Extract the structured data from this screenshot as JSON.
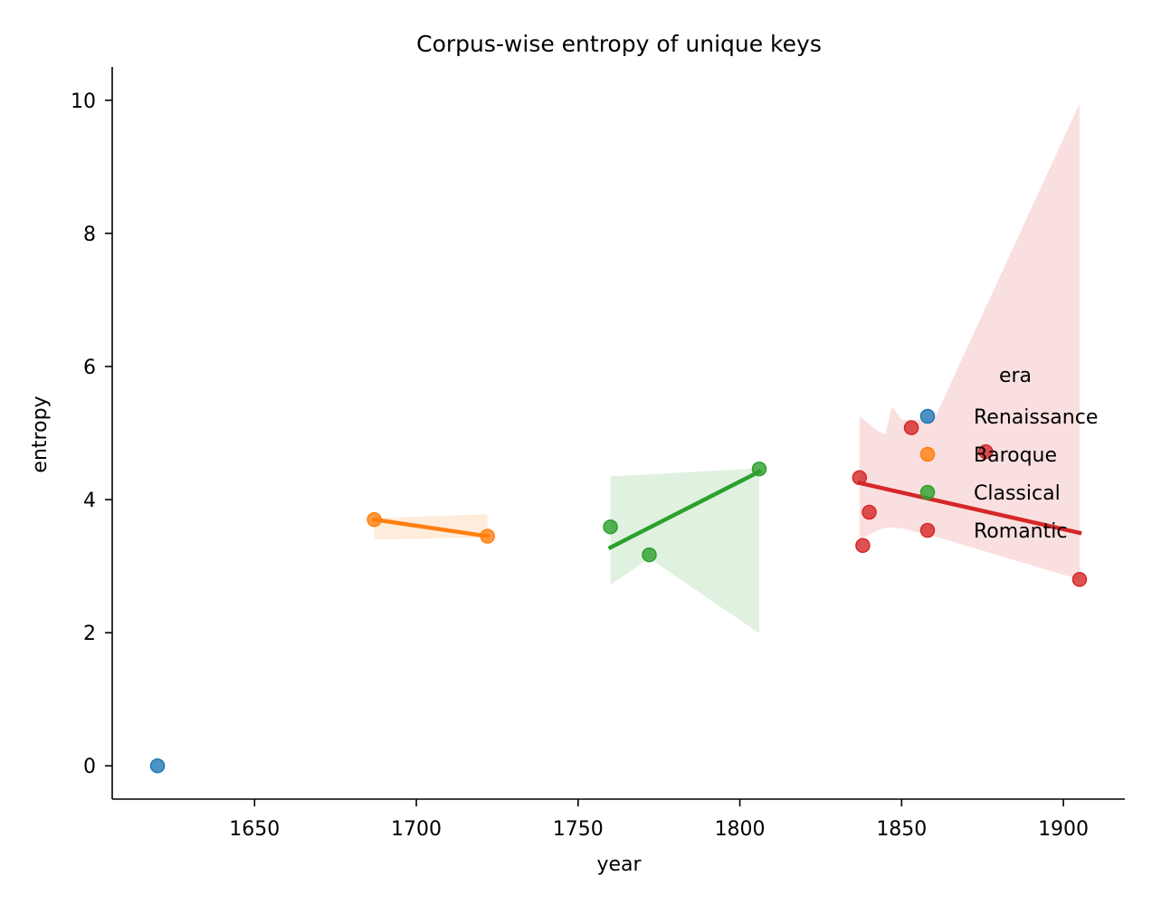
{
  "chart_data": {
    "type": "scatter",
    "title": "Corpus-wise entropy of unique keys",
    "xlabel": "year",
    "ylabel": "entropy",
    "xlim": [
      1606,
      1919
    ],
    "ylim": [
      -0.5,
      10.5
    ],
    "xticks": [
      1650,
      1700,
      1750,
      1800,
      1850,
      1900
    ],
    "yticks": [
      0,
      2,
      4,
      6,
      8,
      10
    ],
    "grid": false,
    "legend": {
      "title": "era",
      "placement": "right"
    },
    "series": [
      {
        "name": "Renaissance",
        "color": "#1f77b4",
        "points": [
          [
            1620,
            0.0
          ]
        ],
        "fit": null,
        "band": null
      },
      {
        "name": "Baroque",
        "color": "#ff7f0e",
        "points": [
          [
            1687,
            3.7
          ],
          [
            1722,
            3.45
          ]
        ],
        "fit": [
          [
            1687,
            3.7
          ],
          [
            1722,
            3.45
          ]
        ],
        "band": {
          "x": [
            1687,
            1722
          ],
          "upper": [
            3.72,
            3.78
          ],
          "lower": [
            3.4,
            3.43
          ]
        }
      },
      {
        "name": "Classical",
        "color": "#2ca02c",
        "points": [
          [
            1760,
            3.59
          ],
          [
            1772,
            3.17
          ],
          [
            1806,
            4.46
          ]
        ],
        "fit": [
          [
            1760,
            3.28
          ],
          [
            1806,
            4.42
          ]
        ],
        "band": {
          "x": [
            1760,
            1772,
            1806
          ],
          "upper": [
            4.35,
            4.38,
            4.47
          ],
          "lower": [
            2.72,
            3.12,
            1.99
          ]
        }
      },
      {
        "name": "Romantic",
        "color": "#d62728",
        "points": [
          [
            1837,
            4.33
          ],
          [
            1838,
            3.31
          ],
          [
            1840,
            3.81
          ],
          [
            1853,
            5.08
          ],
          [
            1876,
            4.72
          ],
          [
            1905,
            2.8
          ]
        ],
        "fit": [
          [
            1837,
            4.25
          ],
          [
            1905,
            3.5
          ]
        ],
        "band": {
          "x": [
            1837,
            1843,
            1845,
            1847,
            1850,
            1860,
            1905
          ],
          "upper": [
            5.25,
            5.02,
            4.98,
            5.4,
            5.2,
            5.2,
            9.95
          ],
          "lower": [
            3.4,
            3.55,
            3.58,
            3.58,
            3.57,
            3.45,
            2.8
          ]
        }
      }
    ]
  }
}
